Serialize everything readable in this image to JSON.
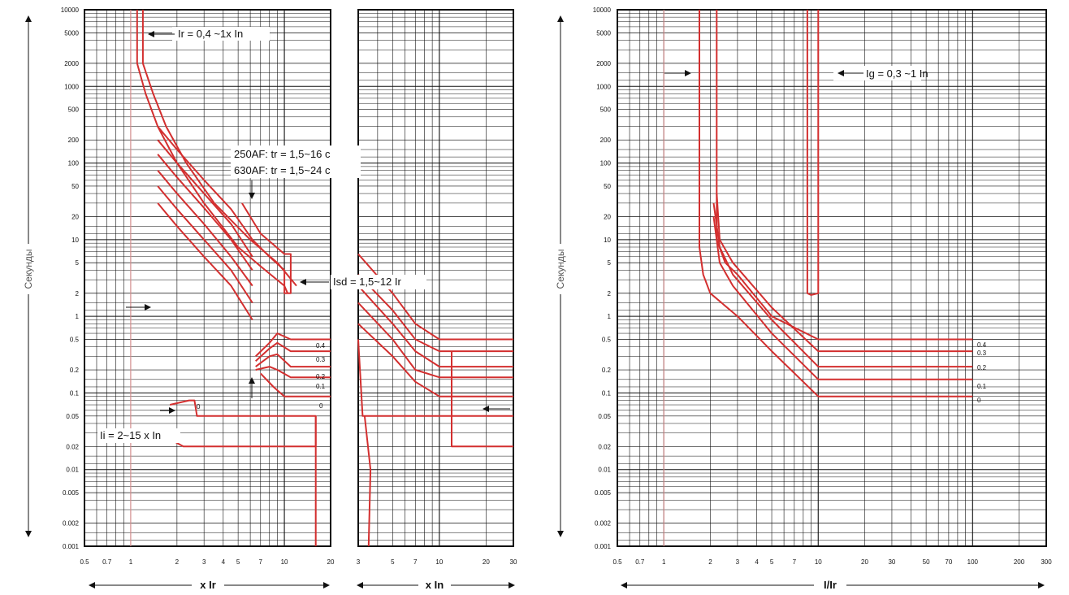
{
  "chart_data": [
    {
      "type": "line",
      "id": "left",
      "ylabel": "Секунды",
      "xscale": "log",
      "yscale": "log",
      "ylim": [
        0.001,
        10000
      ],
      "grid": true,
      "yticks": [
        "0.001",
        "0.002",
        "0.005",
        "0.01",
        "0.02",
        "0.05",
        "0.1",
        "0.2",
        "0.5",
        "1",
        "2",
        "5",
        "10",
        "20",
        "50",
        "100",
        "200",
        "500",
        "1000",
        "2000",
        "5000",
        "10000"
      ],
      "panels": [
        {
          "xlim": [
            0.5,
            20
          ],
          "xlabel": "x Ir",
          "xticks": [
            "0.5",
            "0.7",
            "1",
            "2",
            "3",
            "4",
            "5",
            "7",
            "10",
            "20"
          ],
          "series": [
            {
              "points": [
                [
                  1.1,
                  10000
                ],
                [
                  1.1,
                  2000
                ],
                [
                  1.25,
                  800
                ],
                [
                  1.5,
                  300
                ],
                [
                  2,
                  100
                ],
                [
                  3,
                  30
                ],
                [
                  5,
                  8
                ],
                [
                  7,
                  4.5
                ],
                [
                  10,
                  2.5
                ],
                [
                  10.5,
                  2
                ]
              ]
            },
            {
              "points": [
                [
                  1.2,
                  10000
                ],
                [
                  1.2,
                  2000
                ],
                [
                  1.4,
                  800
                ],
                [
                  1.7,
                  300
                ],
                [
                  2.3,
                  100
                ],
                [
                  3.5,
                  30
                ],
                [
                  6,
                  10
                ],
                [
                  9,
                  5
                ],
                [
                  12,
                  2.5
                ]
              ]
            },
            {
              "points": [
                [
                  1.5,
                  300
                ],
                [
                  2,
                  150
                ],
                [
                  3,
                  60
                ],
                [
                  4.5,
                  25
                ],
                [
                  6.2,
                  10
                ]
              ]
            },
            {
              "points": [
                [
                  1.5,
                  200
                ],
                [
                  2,
                  100
                ],
                [
                  3,
                  40
                ],
                [
                  4.5,
                  16
                ],
                [
                  6.2,
                  6
                ]
              ]
            },
            {
              "points": [
                [
                  1.5,
                  130
                ],
                [
                  2,
                  65
                ],
                [
                  3,
                  26
                ],
                [
                  4.5,
                  10
                ],
                [
                  6.2,
                  4
                ]
              ]
            },
            {
              "points": [
                [
                  1.5,
                  80
                ],
                [
                  2,
                  40
                ],
                [
                  3,
                  16
                ],
                [
                  4.5,
                  6
                ],
                [
                  6.2,
                  2.5
                ]
              ]
            },
            {
              "points": [
                [
                  1.5,
                  50
                ],
                [
                  2,
                  25
                ],
                [
                  3,
                  10
                ],
                [
                  4.5,
                  4
                ],
                [
                  6.2,
                  1.5
                ]
              ]
            },
            {
              "points": [
                [
                  1.5,
                  30
                ],
                [
                  2,
                  15
                ],
                [
                  3,
                  6
                ],
                [
                  4.5,
                  2.5
                ],
                [
                  6.2,
                  0.9
                ]
              ]
            },
            {
              "points": [
                [
                  5.3,
                  30
                ],
                [
                  7,
                  12
                ],
                [
                  10,
                  6.5
                ],
                [
                  11,
                  6.5
                ],
                [
                  11,
                  2
                ],
                [
                  10,
                  2
                ],
                [
                  10,
                  4
                ],
                [
                  8,
                  6
                ],
                [
                  6.2,
                  10
                ]
              ]
            },
            {
              "points": [
                [
                  6.5,
                  0.3
                ],
                [
                  8,
                  0.45
                ],
                [
                  9,
                  0.6
                ],
                [
                  11,
                  0.5
                ],
                [
                  20,
                  0.5
                ]
              ]
            },
            {
              "points": [
                [
                  6.5,
                  0.26
                ],
                [
                  8,
                  0.38
                ],
                [
                  9,
                  0.45
                ],
                [
                  11,
                  0.35
                ],
                [
                  20,
                  0.35
                ]
              ]
            },
            {
              "points": [
                [
                  6.5,
                  0.22
                ],
                [
                  8,
                  0.3
                ],
                [
                  9,
                  0.32
                ],
                [
                  11,
                  0.22
                ],
                [
                  20,
                  0.22
                ]
              ]
            },
            {
              "points": [
                [
                  6.5,
                  0.2
                ],
                [
                  8,
                  0.22
                ],
                [
                  9,
                  0.2
                ],
                [
                  11,
                  0.16
                ],
                [
                  20,
                  0.16
                ]
              ]
            },
            {
              "points": [
                [
                  7,
                  0.18
                ],
                [
                  8.5,
                  0.12
                ],
                [
                  10,
                  0.09
                ],
                [
                  20,
                  0.09
                ]
              ]
            },
            {
              "points": [
                [
                  1.8,
                  0.07
                ],
                [
                  2.4,
                  0.08
                ],
                [
                  2.6,
                  0.08
                ],
                [
                  2.7,
                  0.05
                ],
                [
                  16,
                  0.05
                ],
                [
                  16,
                  0.001
                ]
              ]
            },
            {
              "points": [
                [
                  1.8,
                  0.025
                ],
                [
                  2.2,
                  0.02
                ],
                [
                  16,
                  0.02
                ],
                [
                  16,
                  0.05
                ]
              ]
            }
          ]
        },
        {
          "xlim": [
            3,
            30
          ],
          "xlabel": "x In",
          "xticks": [
            "3",
            "5",
            "7",
            "10",
            "20",
            "30"
          ],
          "series": [
            {
              "points": [
                [
                  3,
                  6.5
                ],
                [
                  5,
                  2
                ],
                [
                  7,
                  0.8
                ],
                [
                  10,
                  0.5
                ],
                [
                  30,
                  0.5
                ]
              ]
            },
            {
              "points": [
                [
                  3,
                  3.5
                ],
                [
                  5,
                  1.2
                ],
                [
                  7,
                  0.5
                ],
                [
                  10,
                  0.35
                ],
                [
                  30,
                  0.35
                ]
              ]
            },
            {
              "points": [
                [
                  3,
                  2.5
                ],
                [
                  5,
                  0.8
                ],
                [
                  7,
                  0.35
                ],
                [
                  10,
                  0.22
                ],
                [
                  30,
                  0.22
                ]
              ]
            },
            {
              "points": [
                [
                  3,
                  1.5
                ],
                [
                  5,
                  0.5
                ],
                [
                  7,
                  0.2
                ],
                [
                  10,
                  0.16
                ],
                [
                  30,
                  0.16
                ]
              ]
            },
            {
              "points": [
                [
                  3,
                  0.8
                ],
                [
                  5,
                  0.3
                ],
                [
                  7,
                  0.14
                ],
                [
                  10,
                  0.09
                ],
                [
                  30,
                  0.09
                ]
              ]
            },
            {
              "points": [
                [
                  3,
                  0.5
                ],
                [
                  3.2,
                  0.05
                ],
                [
                  12,
                  0.05
                ],
                [
                  30,
                  0.05
                ]
              ]
            },
            {
              "points": [
                [
                  12,
                  0.35
                ],
                [
                  12,
                  0.02
                ],
                [
                  30,
                  0.02
                ]
              ]
            },
            {
              "points": [
                [
                  3.5,
                  0.001
                ],
                [
                  3.6,
                  0.01
                ],
                [
                  3.3,
                  0.05
                ]
              ]
            }
          ]
        }
      ],
      "annotations": {
        "ir": "Ir = 0,4 ~1x In",
        "tr1": "250AF: tr = 1,5~16 c",
        "tr2": "630AF: tr = 1,5~24 c",
        "isd": "Isd = 1,5~12 Ir",
        "ii": "Ii = 2~15 x In"
      },
      "band_labels": {
        "zero_upper": "0",
        "zero_lower": "0",
        "b04": "0.4",
        "b03": "0.3",
        "b02": "0.2",
        "b01": "0.1"
      }
    },
    {
      "type": "line",
      "id": "right",
      "ylabel": "Секунды",
      "xlabel": "I/Ir",
      "xscale": "log",
      "yscale": "log",
      "xlim": [
        0.5,
        300
      ],
      "ylim": [
        0.001,
        10000
      ],
      "grid": true,
      "xticks": [
        "0.5",
        "0.7",
        "1",
        "2",
        "3",
        "4",
        "5",
        "7",
        "10",
        "20",
        "30",
        "50",
        "70",
        "100",
        "200",
        "300"
      ],
      "annotations": {
        "ig": "Ig = 0,3 ~1 In"
      },
      "band_labels": {
        "b04": "0.4",
        "b03": "0.3",
        "b02": "0.2",
        "b01": "0.1",
        "b0": "0"
      },
      "series": [
        {
          "points": [
            [
              1.7,
              10000
            ],
            [
              1.7,
              8
            ],
            [
              1.8,
              3.5
            ],
            [
              2,
              2
            ],
            [
              3,
              1
            ],
            [
              5,
              0.35
            ],
            [
              10,
              0.09
            ],
            [
              100,
              0.09
            ]
          ]
        },
        {
          "points": [
            [
              2.2,
              10000
            ],
            [
              2.2,
              10
            ],
            [
              2.5,
              5
            ],
            [
              3,
              3.5
            ],
            [
              5,
              1
            ],
            [
              10,
              0.5
            ],
            [
              100,
              0.5
            ]
          ]
        },
        {
          "points": [
            [
              2.2,
              40
            ],
            [
              2.3,
              10
            ],
            [
              2.8,
              5
            ],
            [
              5,
              1.3
            ],
            [
              10,
              0.35
            ],
            [
              100,
              0.35
            ]
          ]
        },
        {
          "points": [
            [
              2.1,
              30
            ],
            [
              2.3,
              8
            ],
            [
              2.8,
              3.5
            ],
            [
              5,
              0.9
            ],
            [
              10,
              0.22
            ],
            [
              100,
              0.22
            ]
          ]
        },
        {
          "points": [
            [
              2.1,
              20
            ],
            [
              2.3,
              5
            ],
            [
              2.8,
              2.5
            ],
            [
              5,
              0.6
            ],
            [
              10,
              0.15
            ],
            [
              100,
              0.15
            ]
          ]
        },
        {
          "points": [
            [
              8.5,
              10000
            ],
            [
              8.5,
              2
            ],
            [
              9,
              1.9
            ],
            [
              10,
              2
            ],
            [
              10,
              10000
            ]
          ]
        }
      ]
    }
  ]
}
